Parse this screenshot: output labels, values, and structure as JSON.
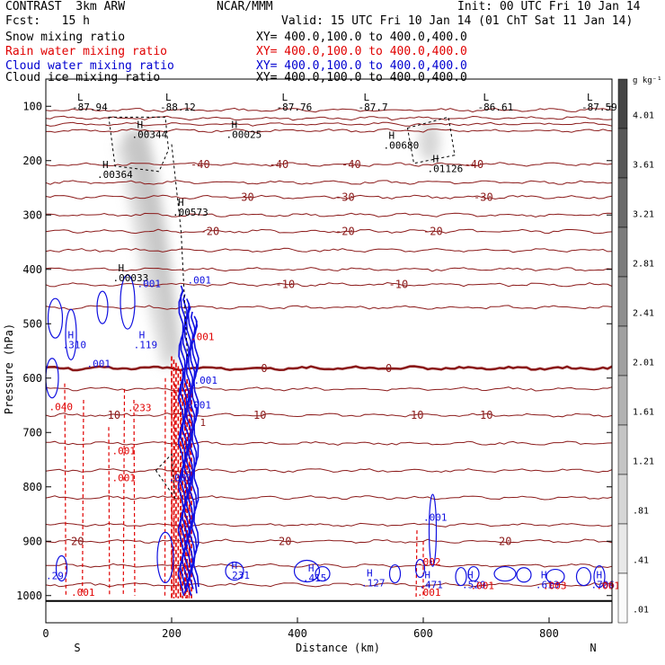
{
  "header": {
    "model": "CONTRAST  3km ARW",
    "org": "NCAR/MMM",
    "init": "Init: 00 UTC Fri 10 Jan 14",
    "fcst": "Fcst:   15 h",
    "valid": "Valid: 15 UTC Fri 10 Jan 14 (01 ChT Sat 11 Jan 14)"
  },
  "fields": [
    {
      "name": "Snow mixing ratio",
      "xy": "XY= 400.0,100.0 to 400.0,400.0",
      "color": "#000000"
    },
    {
      "name": "Rain water mixing ratio",
      "xy": "XY= 400.0,100.0 to 400.0,400.0",
      "color": "#e00000"
    },
    {
      "name": "Cloud water mixing ratio",
      "xy": "XY= 400.0,100.0 to 400.0,400.0",
      "color": "#0000d0"
    },
    {
      "name": "Cloud ice mixing ratio",
      "xy": "XY= 400.0,100.0 to 400.0,400.0",
      "color": "#000000"
    }
  ],
  "colors": {
    "temp": "#8b1a1a",
    "rain": "#e00000",
    "cloud": "#1010e0",
    "ice": "#000000",
    "frz": "#7a0000"
  },
  "chart_data": {
    "type": "heatmap",
    "xlabel": "Distance (km)",
    "ylabel": "Pressure (hPa)",
    "xlim": [
      0,
      900
    ],
    "ylim": [
      1050,
      50
    ],
    "xticks": [
      0,
      200,
      400,
      600,
      800
    ],
    "yticks": [
      100,
      200,
      300,
      400,
      500,
      600,
      700,
      800,
      900,
      1000
    ],
    "x_end_labels": [
      "S",
      "N"
    ],
    "colorbar": {
      "unit": "g kg⁻¹",
      "ticks": [
        "4.01",
        "3.61",
        "3.21",
        "2.81",
        "2.41",
        "2.01",
        "1.61",
        "1.21",
        ".81",
        ".41",
        ".01"
      ]
    },
    "temperature_contours": [
      {
        "level": "-40",
        "p": 207,
        "labels_x": [
          230,
          355,
          470,
          665
        ]
      },
      {
        "level": "-30",
        "p": 267,
        "labels_x": [
          300,
          460,
          680
        ]
      },
      {
        "level": "-20",
        "p": 330,
        "labels_x": [
          245,
          460,
          600
        ]
      },
      {
        "level": "-10",
        "p": 428,
        "labels_x": [
          365,
          545
        ]
      },
      {
        "level": "0",
        "p": 582,
        "labels_x": [
          342,
          540
        ]
      },
      {
        "level": "10",
        "p": 668,
        "labels_x": [
          98,
          330,
          580,
          690
        ]
      },
      {
        "level": "20",
        "p": 900,
        "labels_x": [
          40,
          370,
          720
        ]
      }
    ],
    "highs_lows": [
      {
        "mark": "L",
        "value": "-87.94",
        "x": 50,
        "p": 90
      },
      {
        "mark": "L",
        "value": "-88.12",
        "x": 190,
        "p": 90
      },
      {
        "mark": "L",
        "value": "-87.76",
        "x": 375,
        "p": 90
      },
      {
        "mark": "L",
        "value": "-87.7",
        "x": 505,
        "p": 90
      },
      {
        "mark": "L",
        "value": "-86.61",
        "x": 695,
        "p": 90
      },
      {
        "mark": "L",
        "value": "-87.59",
        "x": 860,
        "p": 90
      },
      {
        "mark": "H",
        "value": ".00344",
        "x": 145,
        "p": 140
      },
      {
        "mark": "H",
        "value": ".00025",
        "x": 295,
        "p": 140
      },
      {
        "mark": "H",
        "value": ".00680",
        "x": 545,
        "p": 160
      },
      {
        "mark": "H",
        "value": ".01126",
        "x": 615,
        "p": 203
      },
      {
        "mark": "H",
        "value": ".00364",
        "x": 90,
        "p": 214
      },
      {
        "mark": "H",
        "value": ".00573",
        "x": 210,
        "p": 283
      },
      {
        "mark": "H",
        "value": ".00033",
        "x": 115,
        "p": 404
      },
      {
        "mark": "H",
        "value": ".310",
        "x": 35,
        "p": 527
      },
      {
        "mark": "H",
        "value": ".119",
        "x": 148,
        "p": 527
      },
      {
        "mark": "H",
        "value": ".231",
        "x": 295,
        "p": 951
      },
      {
        "mark": "H",
        "value": ".415",
        "x": 417,
        "p": 956
      },
      {
        "mark": "H",
        "value": ".127",
        "x": 510,
        "p": 965
      },
      {
        "mark": "H",
        "value": ".471",
        "x": 602,
        "p": 968
      },
      {
        "mark": "H",
        "value": ".520",
        "x": 670,
        "p": 968
      },
      {
        "mark": "H",
        "value": ".613",
        "x": 787,
        "p": 968
      },
      {
        "mark": "H",
        "value": ".706",
        "x": 875,
        "p": 968
      }
    ],
    "small_labels": [
      {
        "text": ".001",
        "x": 145,
        "p": 433,
        "color": "cloud"
      },
      {
        "text": ".001",
        "x": 225,
        "p": 426,
        "color": "cloud"
      },
      {
        "text": ".001",
        "x": 230,
        "p": 530,
        "color": "rain"
      },
      {
        "text": ".001",
        "x": 65,
        "p": 580,
        "color": "cloud"
      },
      {
        "text": ".001",
        "x": 235,
        "p": 610,
        "color": "cloud"
      },
      {
        "text": ".001",
        "x": 225,
        "p": 656,
        "color": "cloud"
      },
      {
        "text": ".040",
        "x": 5,
        "p": 659,
        "color": "rain"
      },
      {
        "text": ".233",
        "x": 130,
        "p": 661,
        "color": "rain"
      },
      {
        "text": ".001",
        "x": 105,
        "p": 740,
        "color": "rain"
      },
      {
        "text": ".001",
        "x": 105,
        "p": 790,
        "color": "rain"
      },
      {
        "text": ".001",
        "x": 195,
        "p": 790,
        "color": "cloud"
      },
      {
        "text": ".001",
        "x": 600,
        "p": 862,
        "color": "cloud"
      },
      {
        "text": ".002",
        "x": 590,
        "p": 944,
        "color": "rain"
      },
      {
        "text": ".001",
        "x": 590,
        "p": 1000,
        "color": "rain"
      },
      {
        "text": ".001",
        "x": 40,
        "p": 1000,
        "color": "rain"
      },
      {
        "text": ".001",
        "x": 675,
        "p": 988,
        "color": "rain"
      },
      {
        "text": ".003",
        "x": 790,
        "p": 988,
        "color": "rain"
      },
      {
        "text": ".001",
        "x": 875,
        "p": 988,
        "color": "rain"
      },
      {
        "text": ".29",
        "x": 0,
        "p": 970,
        "color": "cloud"
      },
      {
        "text": "1",
        "x": 245,
        "p": 688,
        "color": "temp"
      }
    ]
  }
}
